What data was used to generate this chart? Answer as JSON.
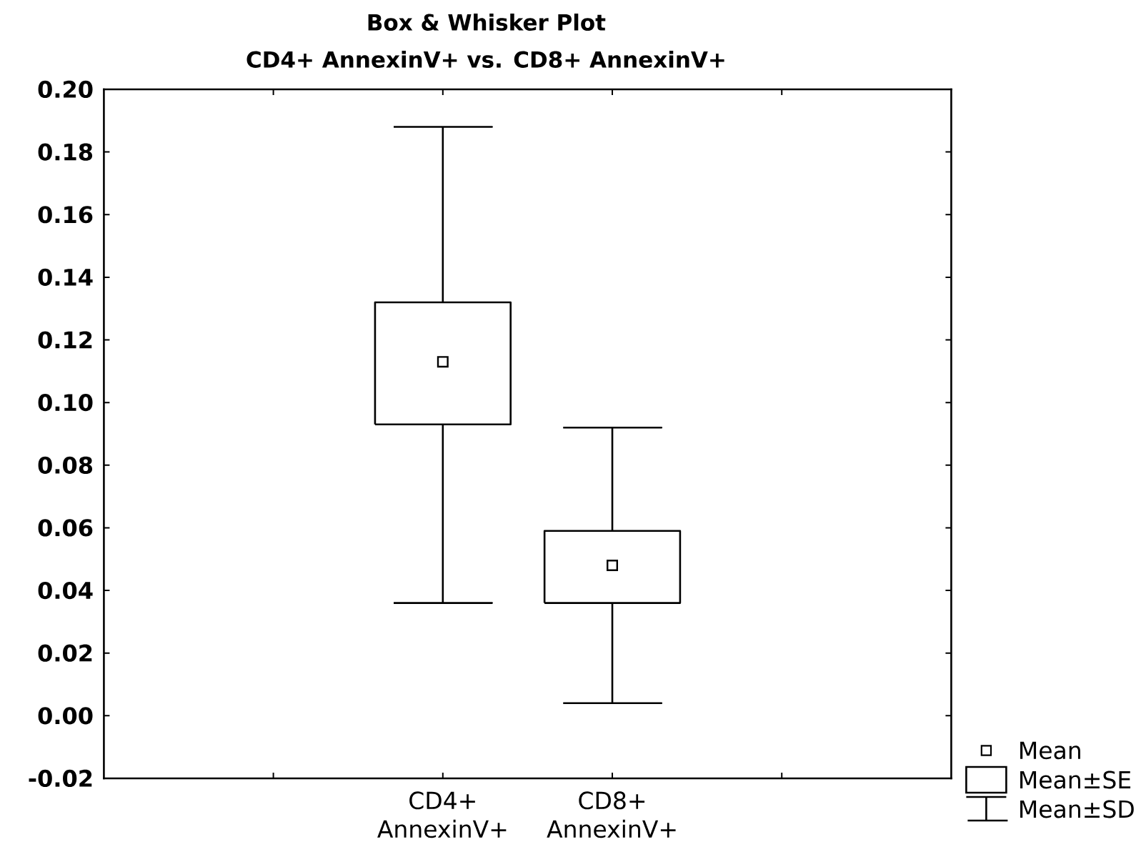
{
  "chart_data": {
    "type": "box",
    "title": "Box & Whisker Plot",
    "subtitle": "CD4+ AnnexinV+ vs. CD8+ AnnexinV+",
    "categories": [
      "CD4+ AnnexinV+",
      "CD8+ AnnexinV+"
    ],
    "boxes": [
      {
        "low": 0.036,
        "q1": 0.093,
        "q3": 0.132,
        "high": 0.188,
        "mean": 0.113
      },
      {
        "low": 0.004,
        "q1": 0.036,
        "q3": 0.059,
        "high": 0.092,
        "mean": 0.048
      }
    ],
    "ylim": [
      -0.02,
      0.2
    ],
    "yticks": [
      {
        "value": -0.02,
        "label": "-0.02"
      },
      {
        "value": 0,
        "label": "0.00"
      },
      {
        "value": 0.02,
        "label": "0.02"
      },
      {
        "value": 0.04,
        "label": "0.04"
      },
      {
        "value": 0.06,
        "label": "0.06"
      },
      {
        "value": 0.08,
        "label": "0.08"
      },
      {
        "value": 0.1,
        "label": "0.10"
      },
      {
        "value": 0.12,
        "label": "0.12"
      },
      {
        "value": 0.14,
        "label": "0.14"
      },
      {
        "value": 0.16,
        "label": "0.16"
      },
      {
        "value": 0.18,
        "label": "0.18"
      },
      {
        "value": 0.2,
        "label": "0.20"
      }
    ],
    "marker": "square",
    "annotations": [
      "Mean",
      "Mean±SE",
      "Mean±SD"
    ]
  }
}
